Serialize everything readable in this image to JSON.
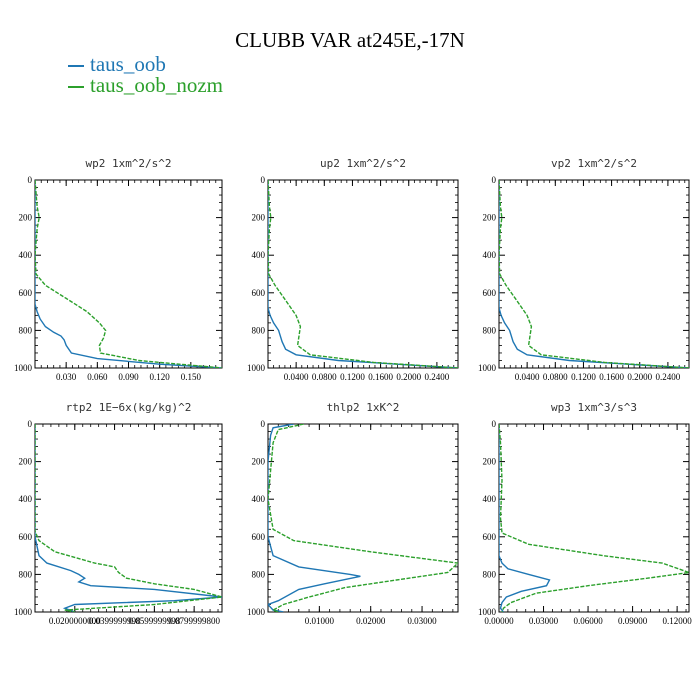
{
  "title": "CLUBB VAR at245E,-17N",
  "legend": [
    {
      "name": "taus_oob",
      "color": "#1f77b4"
    },
    {
      "name": "taus_oob_nozm",
      "color": "#2ca02c"
    }
  ],
  "chart_data": [
    {
      "type": "line",
      "title": "wp2  1xm^2/s^2",
      "xlim": [
        0,
        0.18
      ],
      "ylim": [
        1000,
        0
      ],
      "xticks": [
        0.03,
        0.06,
        0.09,
        0.12,
        0.15
      ],
      "xtick_labels": [
        "0.030",
        "0.060",
        "0.090",
        "0.120",
        "0.150"
      ],
      "yticks": [
        0,
        200,
        400,
        600,
        800,
        1000
      ],
      "ytick_labels": [
        "0",
        "200",
        "400",
        "600",
        "800",
        "1000"
      ],
      "series": [
        {
          "name": "taus_oob",
          "color": "#1f77b4",
          "x": [
            0,
            0,
            0,
            0.002,
            0.005,
            0.01,
            0.018,
            0.025,
            0.028,
            0.03,
            0.035,
            0.06,
            0.12,
            0.18
          ],
          "y": [
            0,
            400,
            660,
            700,
            740,
            780,
            810,
            830,
            850,
            880,
            920,
            950,
            980,
            1000
          ]
        },
        {
          "name": "taus_oob_nozm",
          "color": "#2ca02c",
          "x": [
            0,
            0.002,
            0.004,
            0.002,
            0,
            0.001,
            0.01,
            0.03,
            0.05,
            0.062,
            0.068,
            0.066,
            0.062,
            0.063,
            0.1,
            0.18
          ],
          "y": [
            0,
            140,
            200,
            260,
            400,
            500,
            560,
            630,
            700,
            760,
            800,
            840,
            880,
            920,
            960,
            1000
          ]
        }
      ]
    },
    {
      "type": "line",
      "title": "up2  1xm^2/s^2",
      "xlim": [
        0,
        0.27
      ],
      "ylim": [
        1000,
        0
      ],
      "xticks": [
        0.04,
        0.08,
        0.12,
        0.16,
        0.2,
        0.24
      ],
      "xtick_labels": [
        "0.0400",
        "0.0800",
        "0.1200",
        "0.1600",
        "0.2000",
        "0.2400"
      ],
      "yticks": [
        0,
        200,
        400,
        600,
        800,
        1000
      ],
      "ytick_labels": [
        "0",
        "200",
        "400",
        "600",
        "800",
        "1000"
      ],
      "series": [
        {
          "name": "taus_oob",
          "color": "#1f77b4",
          "x": [
            0,
            0,
            0,
            0.003,
            0.008,
            0.015,
            0.02,
            0.025,
            0.04,
            0.1,
            0.27
          ],
          "y": [
            0,
            400,
            680,
            720,
            760,
            800,
            860,
            900,
            930,
            960,
            1000
          ]
        },
        {
          "name": "taus_oob_nozm",
          "color": "#2ca02c",
          "x": [
            0,
            0.002,
            0.004,
            0.002,
            0,
            0.001,
            0.01,
            0.025,
            0.04,
            0.046,
            0.044,
            0.042,
            0.06,
            0.15,
            0.27
          ],
          "y": [
            0,
            140,
            200,
            260,
            400,
            500,
            560,
            640,
            720,
            780,
            830,
            880,
            930,
            970,
            1000
          ]
        }
      ]
    },
    {
      "type": "line",
      "title": "vp2  1xm^2/s^2",
      "xlim": [
        0,
        0.27
      ],
      "ylim": [
        1000,
        0
      ],
      "xticks": [
        0.04,
        0.08,
        0.12,
        0.16,
        0.2,
        0.24
      ],
      "xtick_labels": [
        "0.0400",
        "0.0800",
        "0.1200",
        "0.1600",
        "0.2000",
        "0.2400"
      ],
      "yticks": [
        0,
        200,
        400,
        600,
        800,
        1000
      ],
      "ytick_labels": [
        "0",
        "200",
        "400",
        "600",
        "800",
        "1000"
      ],
      "series": [
        {
          "name": "taus_oob",
          "color": "#1f77b4",
          "x": [
            0,
            0,
            0,
            0.003,
            0.008,
            0.015,
            0.02,
            0.026,
            0.04,
            0.1,
            0.27
          ],
          "y": [
            0,
            400,
            680,
            720,
            760,
            800,
            860,
            900,
            930,
            960,
            1000
          ]
        },
        {
          "name": "taus_oob_nozm",
          "color": "#2ca02c",
          "x": [
            0,
            0.002,
            0.004,
            0.002,
            0,
            0.001,
            0.01,
            0.025,
            0.04,
            0.046,
            0.044,
            0.042,
            0.06,
            0.15,
            0.27
          ],
          "y": [
            0,
            140,
            200,
            260,
            400,
            500,
            560,
            640,
            720,
            780,
            830,
            880,
            930,
            970,
            1000
          ]
        }
      ]
    },
    {
      "type": "line",
      "title": "rtp2  1E−6x(kg/kg)^2",
      "xlim": [
        0,
        0.094
      ],
      "ylim": [
        1000,
        0
      ],
      "xticks": [
        0.02,
        0.04,
        0.06,
        0.08
      ],
      "xtick_labels": [
        "0.0200000000",
        "0.0399999998",
        "0.0599999998",
        "0.0799999800"
      ],
      "yticks": [
        0,
        200,
        400,
        600,
        800,
        1000
      ],
      "ytick_labels": [
        "0",
        "200",
        "400",
        "600",
        "800",
        "1000"
      ],
      "series": [
        {
          "name": "taus_oob",
          "color": "#1f77b4",
          "x": [
            0,
            0,
            0.002,
            0.006,
            0.018,
            0.022,
            0.025,
            0.022,
            0.028,
            0.06,
            0.094,
            0.07,
            0.02,
            0.015,
            0.02
          ],
          "y": [
            0,
            600,
            700,
            740,
            780,
            800,
            820,
            840,
            860,
            880,
            920,
            940,
            960,
            980,
            1000
          ]
        },
        {
          "name": "taus_oob_nozm",
          "color": "#2ca02c",
          "x": [
            0,
            0,
            0.002,
            0.01,
            0.03,
            0.04,
            0.042,
            0.046,
            0.06,
            0.08,
            0.094,
            0.06,
            0.015,
            0.02
          ],
          "y": [
            0,
            570,
            620,
            680,
            740,
            760,
            790,
            820,
            850,
            880,
            920,
            960,
            990,
            1000
          ]
        }
      ]
    },
    {
      "type": "line",
      "title": "thlp2  1xK^2",
      "xlim": [
        0,
        0.037
      ],
      "ylim": [
        1000,
        0
      ],
      "xticks": [
        0.01,
        0.02,
        0.03
      ],
      "xtick_labels": [
        "0.01000",
        "0.02000",
        "0.03000"
      ],
      "yticks": [
        0,
        200,
        400,
        600,
        800,
        1000
      ],
      "ytick_labels": [
        "0",
        "200",
        "400",
        "600",
        "800",
        "1000"
      ],
      "series": [
        {
          "name": "taus_oob",
          "color": "#1f77b4",
          "x": [
            0.005,
            0.001,
            0.0005,
            0,
            0,
            0.001,
            0.006,
            0.016,
            0.018,
            0.011,
            0.006,
            0.002,
            0,
            0.001,
            0.003
          ],
          "y": [
            0,
            20,
            60,
            200,
            600,
            700,
            760,
            800,
            810,
            850,
            880,
            940,
            960,
            990,
            1000
          ]
        },
        {
          "name": "taus_oob_nozm",
          "color": "#2ca02c",
          "x": [
            0.007,
            0.002,
            0.001,
            0,
            0.001,
            0.005,
            0.02,
            0.037,
            0.035,
            0.025,
            0.015,
            0.008,
            0.003,
            0.001,
            0.002
          ],
          "y": [
            0,
            30,
            100,
            400,
            560,
            620,
            680,
            740,
            790,
            830,
            870,
            920,
            960,
            990,
            1000
          ]
        }
      ]
    },
    {
      "type": "line",
      "title": "wp3  1xm^3/s^3",
      "xlim": [
        0,
        0.128
      ],
      "ylim": [
        1000,
        0
      ],
      "xticks": [
        0,
        0.03,
        0.06,
        0.09,
        0.12
      ],
      "xtick_labels": [
        "0.00000",
        "0.03000",
        "0.06000",
        "0.09000",
        "0.12000"
      ],
      "yticks": [
        0,
        200,
        400,
        600,
        800,
        1000
      ],
      "ytick_labels": [
        "0",
        "200",
        "400",
        "600",
        "800",
        "1000"
      ],
      "series": [
        {
          "name": "taus_oob",
          "color": "#1f77b4",
          "x": [
            0,
            0,
            0.002,
            0.006,
            0.02,
            0.034,
            0.032,
            0.015,
            0.005,
            0.002,
            0.001,
            0.003
          ],
          "y": [
            0,
            700,
            740,
            770,
            800,
            830,
            860,
            890,
            920,
            950,
            980,
            1000
          ]
        },
        {
          "name": "taus_oob_nozm",
          "color": "#2ca02c",
          "x": [
            0,
            0.001,
            0.002,
            0.001,
            0.002,
            0.02,
            0.07,
            0.11,
            0.128,
            0.1,
            0.06,
            0.025,
            0.008,
            0.003,
            0.002
          ],
          "y": [
            0,
            100,
            300,
            500,
            580,
            640,
            700,
            740,
            790,
            820,
            860,
            900,
            950,
            980,
            1000
          ]
        }
      ]
    }
  ]
}
